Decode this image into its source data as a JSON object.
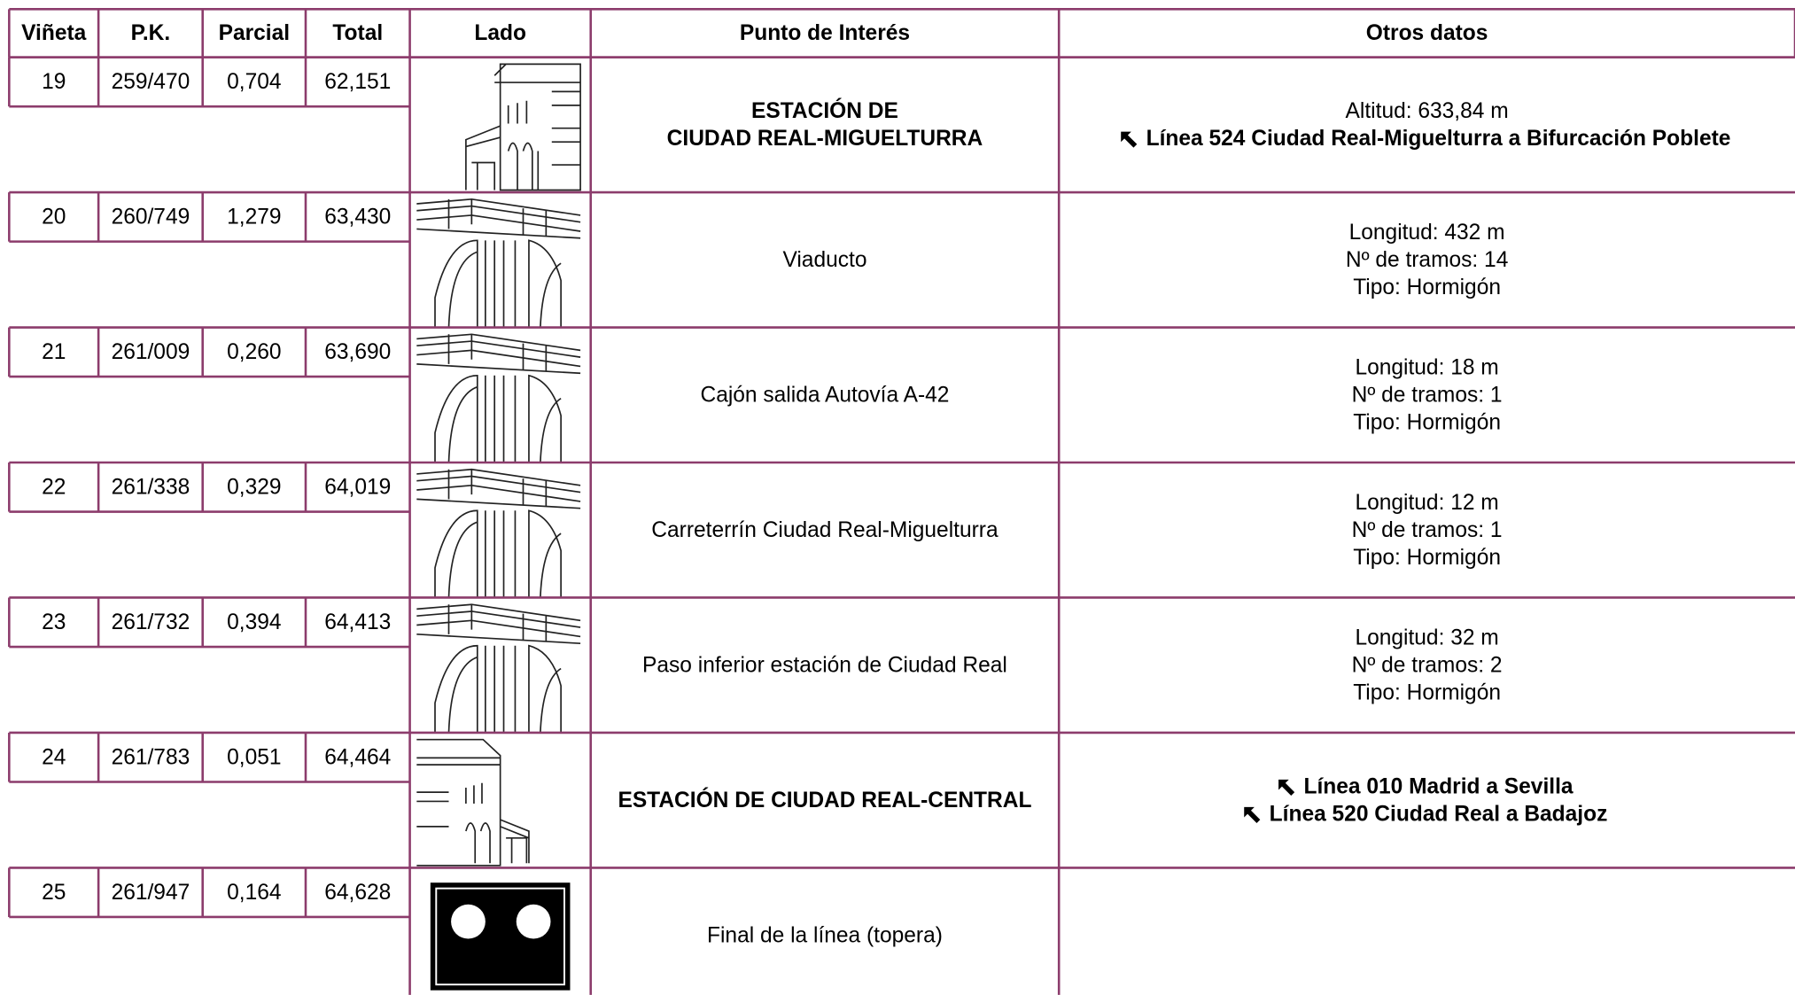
{
  "header": [
    "Viñeta",
    "P.K.",
    "Parcial",
    "Total",
    "Lado",
    "Punto de Interés",
    "Otros datos"
  ],
  "rows": [
    {
      "vineta": "19",
      "pk": "259/470",
      "parcial": "0,704",
      "total": "62,151",
      "punto": [
        "ESTACIÓN DE",
        "CIUDAD REAL-MIGUELTURRA"
      ],
      "otros": [
        "Altitud: 633,84 m"
      ],
      "links": [
        "Línea 524 Ciudad Real-Miguelturra a Bifurcación Poblete"
      ]
    },
    {
      "vineta": "20",
      "pk": "260/749",
      "parcial": "1,279",
      "total": "63,430",
      "punto": [
        "Viaducto"
      ],
      "otros": [
        "Longitud: 432 m",
        "Nº de tramos: 14",
        "Tipo: Hormigón"
      ],
      "links": []
    },
    {
      "vineta": "21",
      "pk": "261/009",
      "parcial": "0,260",
      "total": "63,690",
      "punto": [
        "Cajón salida Autovía A-42"
      ],
      "otros": [
        "Longitud: 18 m",
        "Nº de tramos: 1",
        "Tipo: Hormigón"
      ],
      "links": []
    },
    {
      "vineta": "22",
      "pk": "261/338",
      "parcial": "0,329",
      "total": "64,019",
      "punto": [
        "Carreterrín Ciudad Real-Miguelturra"
      ],
      "otros": [
        "Longitud: 12 m",
        "Nº de tramos: 1",
        "Tipo: Hormigón"
      ],
      "links": []
    },
    {
      "vineta": "23",
      "pk": "261/732",
      "parcial": "0,394",
      "total": "64,413",
      "punto": [
        "Paso inferior estación de Ciudad Real"
      ],
      "otros": [
        "Longitud: 32 m",
        "Nº de tramos: 2",
        "Tipo: Hormigón"
      ],
      "links": []
    },
    {
      "vineta": "24",
      "pk": "261/783",
      "parcial": "0,051",
      "total": "64,464",
      "punto": [
        "ESTACIÓN DE CIUDAD REAL-CENTRAL"
      ],
      "otros": [],
      "links": [
        "Línea 010 Madrid a Sevilla",
        "Línea 520 Ciudad Real a Badajoz"
      ]
    },
    {
      "vineta": "25",
      "pk": "261/947",
      "parcial": "0,164",
      "total": "64,628",
      "punto": [
        "Final de la línea (topera)"
      ],
      "otros": [],
      "links": []
    }
  ]
}
